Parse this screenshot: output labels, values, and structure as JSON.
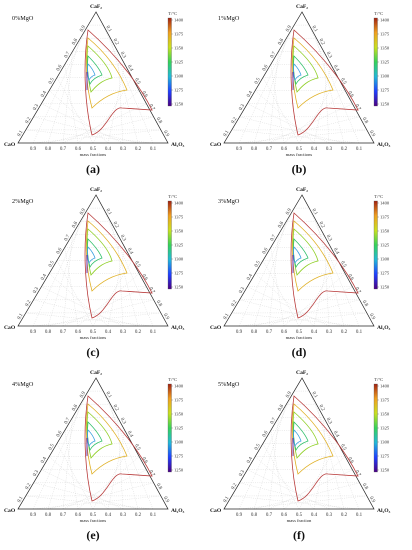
{
  "axis": {
    "corner_top": "CaF₂",
    "corner_left": "CaO",
    "corner_right": "Al₂O₃",
    "ticks_bottom": [
      "0.9",
      "0.8",
      "0.7",
      "0.6",
      "0.5",
      "0.4",
      "0.3",
      "0.2",
      "0.1"
    ],
    "ticks_left": [
      "0.1",
      "0.2",
      "0.3",
      "0.4",
      "0.5",
      "0.6",
      "0.7",
      "0.8",
      "0.9"
    ],
    "ticks_right": [
      "0.9",
      "0.8",
      "0.7",
      "0.6",
      "0.5",
      "0.4",
      "0.3",
      "0.2",
      "0.1"
    ]
  },
  "colorbar": {
    "unit": "T/°C",
    "ticks": [
      "1400",
      "1375",
      "1350",
      "1325",
      "1300",
      "1275",
      "1250"
    ],
    "colors": [
      "#4b0082",
      "#1f3fff",
      "#22b8d8",
      "#35d25a",
      "#c8e020",
      "#f0a020",
      "#a02010"
    ]
  },
  "isotherm_colors": {
    "1250": "#4a00b0",
    "1275": "#2a4dd8",
    "1300": "#3aa0e0",
    "1325": "#2fc06a",
    "1350": "#8fcf25",
    "1375": "#e0b025",
    "1400": "#b83a3a"
  },
  "panels": [
    {
      "title": "0%MgO",
      "axis_name": "mass fractions",
      "label": "(a)",
      "label_letter": "a"
    },
    {
      "title": "1%MgO",
      "axis_name": "mass fractions",
      "label": "(b)",
      "label_letter": "b"
    },
    {
      "title": "2%MgO",
      "axis_name": "mass fractions",
      "label": "(c)",
      "label_letter": "c"
    },
    {
      "title": "3%MgO",
      "axis_name": "mass fractions",
      "label": "(d)",
      "label_letter": "d"
    },
    {
      "title": "4%MgO",
      "axis_name": "mass fractions",
      "label": "(e)",
      "label_letter": "e"
    },
    {
      "title": "5%MgO",
      "axis_name": "mass fraction",
      "label": "(f)",
      "label_letter": "f"
    }
  ]
}
